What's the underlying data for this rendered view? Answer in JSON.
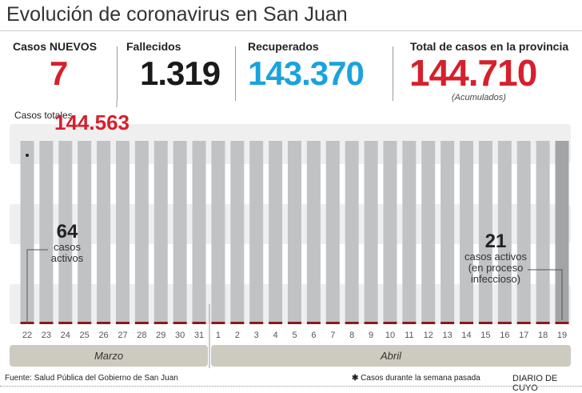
{
  "title": "Evolución de coronavirus en San Juan",
  "stats": [
    {
      "label": "Casos NUEVOS",
      "value": "7",
      "color": "#d6202c"
    },
    {
      "label": "Fallecidos",
      "value": "1.319",
      "color": "#1a1a1a"
    },
    {
      "label": "Recuperados",
      "value": "143.370",
      "color": "#1aa3dc"
    },
    {
      "label": "Total de casos en la provincia",
      "value": "144.710",
      "color": "#d6202c",
      "note": "(Acumulados)"
    }
  ],
  "chart_data": {
    "type": "bar",
    "categories": [
      "22",
      "23",
      "24",
      "25",
      "26",
      "27",
      "28",
      "29",
      "30",
      "31",
      "1",
      "2",
      "3",
      "4",
      "5",
      "6",
      "7",
      "8",
      "9",
      "10",
      "11",
      "12",
      "13",
      "14",
      "15",
      "16",
      "17",
      "18",
      "19"
    ],
    "months": [
      {
        "label": "Marzo",
        "days": 10
      },
      {
        "label": "Abril",
        "days": 19
      }
    ],
    "total_label": "Casos totales",
    "total_value": "144.563",
    "annotations": [
      {
        "day": "22",
        "month": "Marzo",
        "value": "64",
        "text": "casos activos"
      },
      {
        "day": "19",
        "month": "Abril",
        "value": "21",
        "text": "casos activos (en proceso infeccioso)"
      }
    ],
    "colors": {
      "bar": "#c1c2c4",
      "bar_last": "#a3a4a6",
      "active": "#8b1a1a",
      "total": "#d6202c"
    }
  },
  "footer": {
    "source": "Fuente: Salud Pública del Gobierno de San Juan",
    "legend": "Casos durante la semana pasada",
    "legend_icon": "asterisk-icon",
    "brand": "DIARIO DE CUYO"
  }
}
